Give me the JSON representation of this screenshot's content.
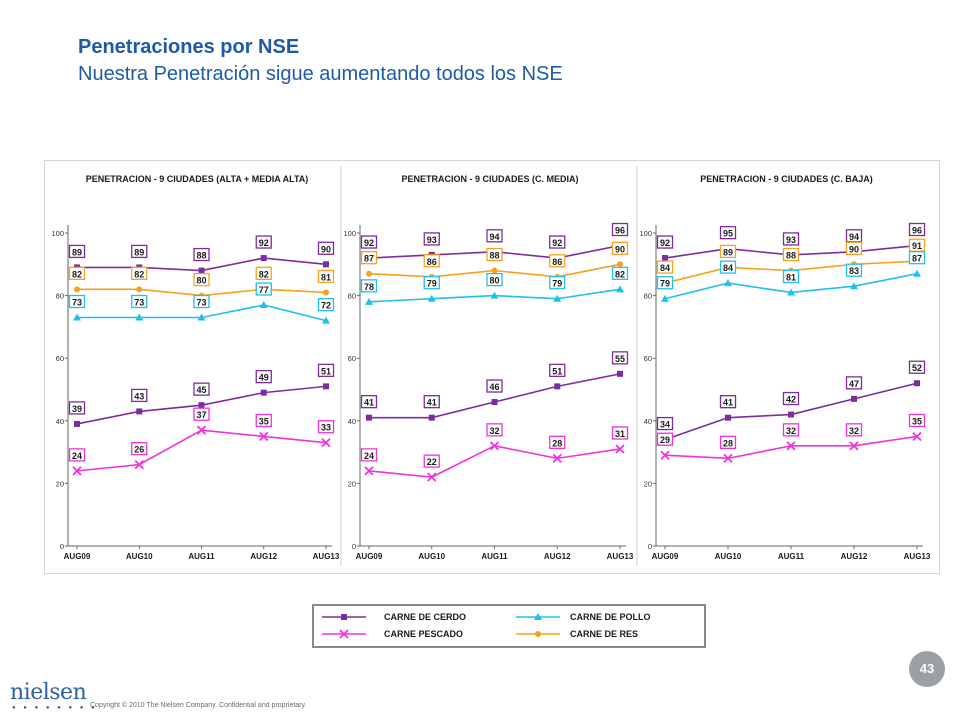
{
  "header": {
    "title": "Penetraciones por NSE",
    "subtitle": "Nuestra Penetración sigue aumentando todos los NSE"
  },
  "series_styles": [
    {
      "name": "CARNE DE CERDO",
      "color": "#7b2c9e",
      "marker": "square"
    },
    {
      "name": "CARNE DE POLLO",
      "color": "#1ec0f0",
      "marker": "triangle"
    },
    {
      "name": "CARNE PESCADO",
      "color": "#ee33dd",
      "marker": "x"
    },
    {
      "name": "CARNE DE RES",
      "color": "#f6a21c",
      "marker": "circle"
    }
  ],
  "legend": {
    "items": [
      "CARNE DE CERDO",
      "CARNE DE POLLO",
      "CARNE PESCADO",
      "CARNE DE RES"
    ]
  },
  "chart_data": [
    {
      "type": "line",
      "title": "PENETRACION - 9 CIUDADES (ALTA + MEDIA ALTA)",
      "categories": [
        "AUG09",
        "AUG10",
        "AUG11",
        "AUG12",
        "AUG13"
      ],
      "ylim": [
        0,
        100
      ],
      "yticks": [
        "0",
        "20",
        "40",
        "60",
        "80",
        "100"
      ],
      "series": [
        {
          "name": "CARNE DE CERDO",
          "values": [
            89,
            89,
            88,
            92,
            90
          ]
        },
        {
          "name": "CARNE DE RES",
          "values": [
            82,
            82,
            80,
            82,
            81
          ]
        },
        {
          "name": "CARNE DE POLLO",
          "values": [
            73,
            73,
            73,
            77,
            72
          ]
        },
        {
          "name": "CARNE DE CERDO",
          "values": [
            39,
            43,
            45,
            49,
            51
          ]
        },
        {
          "name": "CARNE PESCADO",
          "values": [
            24,
            26,
            37,
            35,
            33
          ]
        }
      ]
    },
    {
      "type": "line",
      "title": "PENETRACION - 9 CIUDADES (C. MEDIA)",
      "categories": [
        "AUG09",
        "AUG10",
        "AUG11",
        "AUG12",
        "AUG13"
      ],
      "ylim": [
        0,
        100
      ],
      "yticks": [
        "0",
        "20",
        "40",
        "60",
        "80",
        "100"
      ],
      "series": [
        {
          "name": "CARNE DE CERDO",
          "values": [
            92,
            93,
            94,
            92,
            96
          ]
        },
        {
          "name": "CARNE DE RES",
          "values": [
            87,
            86,
            88,
            86,
            90
          ]
        },
        {
          "name": "CARNE DE POLLO",
          "values": [
            78,
            79,
            80,
            79,
            82
          ]
        },
        {
          "name": "CARNE DE CERDO",
          "values": [
            41,
            41,
            46,
            51,
            55
          ]
        },
        {
          "name": "CARNE PESCADO",
          "values": [
            24,
            22,
            32,
            28,
            31
          ]
        }
      ]
    },
    {
      "type": "line",
      "title": "PENETRACION - 9 CIUDADES (C. BAJA)",
      "categories": [
        "AUG09",
        "AUG10",
        "AUG11",
        "AUG12",
        "AUG13"
      ],
      "ylim": [
        0,
        100
      ],
      "yticks": [
        "0",
        "20",
        "40",
        "60",
        "80",
        "100"
      ],
      "series": [
        {
          "name": "CARNE DE CERDO",
          "values": [
            92,
            95,
            93,
            94,
            96
          ]
        },
        {
          "name": "CARNE DE RES",
          "values": [
            84,
            89,
            88,
            90,
            91
          ]
        },
        {
          "name": "CARNE DE POLLO",
          "values": [
            79,
            84,
            81,
            83,
            87
          ]
        },
        {
          "name": "CARNE DE CERDO",
          "values": [
            34,
            41,
            42,
            47,
            52
          ]
        },
        {
          "name": "CARNE PESCADO",
          "values": [
            29,
            28,
            32,
            32,
            35
          ]
        }
      ]
    }
  ],
  "footer": {
    "page_number": "43",
    "logo": "nielsen",
    "copyright": "Copyright © 2010 The Nielsen Company. Confidential and proprietary."
  }
}
